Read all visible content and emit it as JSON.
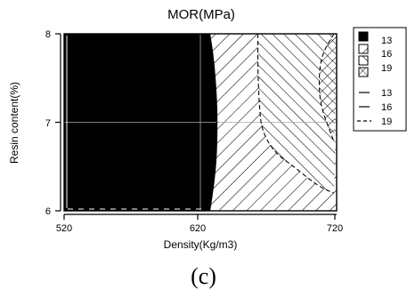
{
  "chart_data": {
    "type": "contour",
    "title": "MOR(MPa)",
    "xlabel": "Density(Kg/m3)",
    "ylabel": "Resin content(%)",
    "xlim": [
      518,
      722
    ],
    "ylim": [
      6,
      8
    ],
    "x_ticks": [
      "520",
      "620",
      "720"
    ],
    "y_ticks": [
      "6",
      "7",
      "8"
    ],
    "grid": true,
    "legend_position": "right",
    "fill_levels": [
      {
        "label": "13",
        "pattern": "solid",
        "color": "#000000"
      },
      {
        "label": "16",
        "pattern": "diag-down"
      },
      {
        "label": "19",
        "pattern": "diag-up"
      },
      {
        "label": "",
        "pattern": "crosshatch"
      }
    ],
    "line_levels": [
      {
        "label": "13",
        "dash": "solid"
      },
      {
        "label": "16",
        "dash": "solid"
      },
      {
        "label": "19",
        "dash": "dashed"
      }
    ],
    "contours": [
      {
        "level": 13,
        "points": [
          [
            627,
            8.0
          ],
          [
            630,
            7.7
          ],
          [
            632,
            7.3
          ],
          [
            632.5,
            7.0
          ],
          [
            632,
            6.6
          ],
          [
            630,
            6.3
          ],
          [
            627,
            6.0
          ]
        ]
      },
      {
        "level": 16,
        "points": [
          [
            663,
            8.0
          ],
          [
            663,
            7.6
          ],
          [
            664,
            7.2
          ],
          [
            666,
            6.9
          ],
          [
            676,
            6.65
          ],
          [
            690,
            6.5
          ],
          [
            702,
            6.35
          ],
          [
            712,
            6.25
          ],
          [
            720,
            6.2
          ]
        ]
      },
      {
        "level": 19,
        "points": [
          [
            720,
            8.0
          ],
          [
            712,
            7.8
          ],
          [
            709,
            7.6
          ],
          [
            709,
            7.3
          ],
          [
            712,
            7.1
          ],
          [
            717,
            6.9
          ],
          [
            720,
            6.78
          ]
        ]
      }
    ]
  },
  "caption": "(c)"
}
